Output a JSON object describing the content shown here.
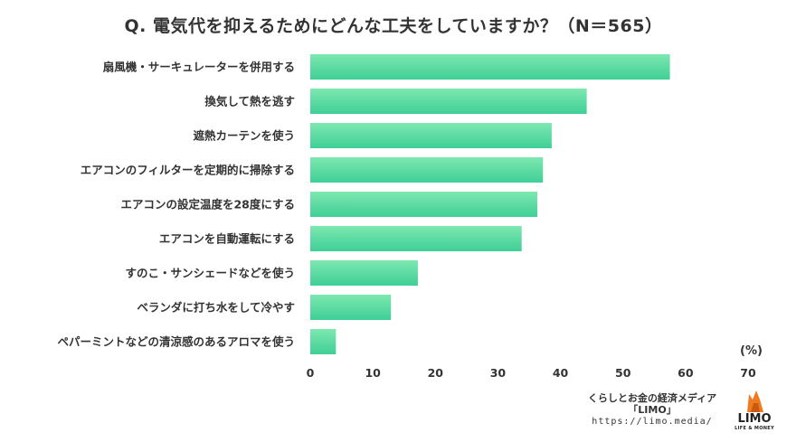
{
  "title": "Q. 電気代を抑えるためにどんな工夫をしていますか？（N＝565）",
  "unit_label": "(%)",
  "footer": {
    "line1": "くらしとお金の経済メディア",
    "line2": "「LIMO」",
    "url": "https://limo.media/"
  },
  "logo": {
    "word": "LIMO",
    "sub": "LIFE & MONEY"
  },
  "colors": {
    "bar_top": "#7de8b0",
    "bar_bottom": "#3fcf97",
    "logo_orange": "#f07a22"
  },
  "chart_data": {
    "type": "bar",
    "orientation": "horizontal",
    "title": "Q. 電気代を抑えるためにどんな工夫をしていますか？（N＝565）",
    "categories": [
      "扇風機・サーキュレーターを併用する",
      "換気して熱を逃す",
      "遮熱カーテンを使う",
      "エアコンのフィルターを定期的に掃除する",
      "エアコンの設定温度を28度にする",
      "エアコンを自動運転にする",
      "すのこ・サンシェードなどを使う",
      "ベランダに打ち水をして冷やす",
      "ペパーミントなどの清涼感のあるアロマを使う"
    ],
    "values": [
      57.5,
      44.2,
      38.6,
      37.2,
      36.3,
      33.8,
      17.2,
      12.9,
      4.1
    ],
    "xlim": [
      0,
      70
    ],
    "xticks": [
      "0",
      "10",
      "20",
      "30",
      "40",
      "50",
      "60",
      "70"
    ],
    "xlabel": "(%)",
    "grid": false
  }
}
